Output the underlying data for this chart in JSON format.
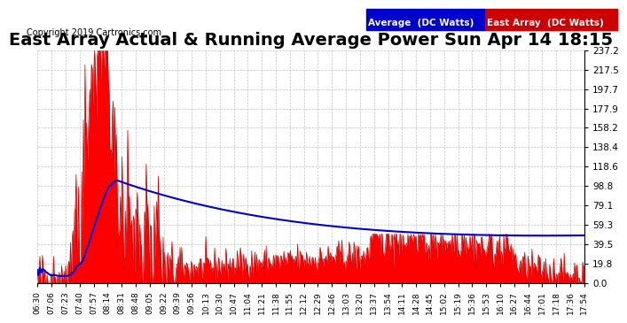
{
  "title": "East Array Actual & Running Average Power Sun Apr 14 18:15",
  "copyright": "Copyright 2019 Cartronics.com",
  "legend_labels": [
    "Average  (DC Watts)",
    "East Array  (DC Watts)"
  ],
  "legend_colors": [
    "#0000cc",
    "#cc0000"
  ],
  "y_ticks": [
    0.0,
    19.8,
    39.5,
    59.3,
    79.1,
    98.8,
    118.6,
    138.4,
    158.2,
    177.9,
    197.7,
    217.5,
    237.2
  ],
  "ylim": [
    0.0,
    237.2
  ],
  "bg_color": "#ffffff",
  "plot_bg_color": "#ffffff",
  "grid_color": "#aaaaaa",
  "title_fontsize": 14,
  "x_labels": [
    "06:30",
    "07:06",
    "07:23",
    "07:40",
    "07:57",
    "08:14",
    "08:31",
    "08:48",
    "09:05",
    "09:22",
    "09:39",
    "09:56",
    "10:13",
    "10:30",
    "10:47",
    "11:04",
    "11:21",
    "11:38",
    "11:55",
    "12:12",
    "12:29",
    "12:46",
    "13:03",
    "13:20",
    "13:37",
    "13:54",
    "14:11",
    "14:28",
    "14:45",
    "15:02",
    "15:19",
    "15:36",
    "15:53",
    "16:10",
    "16:27",
    "16:44",
    "17:01",
    "17:18",
    "17:36",
    "17:54"
  ],
  "n_points": 680
}
